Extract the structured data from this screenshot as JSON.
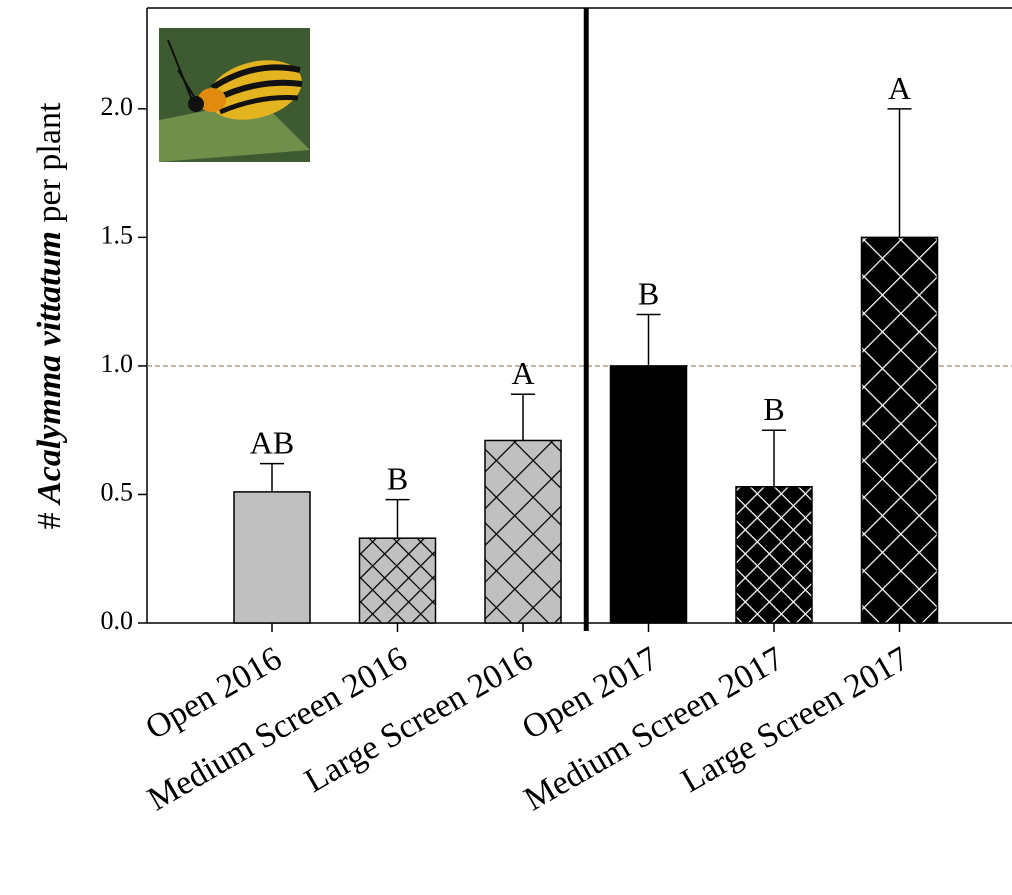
{
  "chart_data": {
    "type": "bar",
    "y_label": {
      "prefix": "#",
      "species": "Acalymma vittatum",
      "suffix": "per plant"
    },
    "categories": [
      "Open 2016",
      "Medium Screen 2016",
      "Large Screen 2016",
      "Open 2017",
      "Medium Screen 2017",
      "Large Screen 2017"
    ],
    "values": [
      0.51,
      0.33,
      0.71,
      1.0,
      0.53,
      1.5
    ],
    "errors": [
      0.11,
      0.15,
      0.18,
      0.2,
      0.22,
      0.5
    ],
    "annotations": [
      "AB",
      "B",
      "A",
      "B",
      "B",
      "A"
    ],
    "colors": [
      "#c0c0c0",
      "#c0c0c0",
      "#c0c0c0",
      "#000000",
      "#000000",
      "#000000"
    ],
    "patterns": [
      "none",
      "dense",
      "sparse",
      "none",
      "dense",
      "sparse"
    ],
    "reference_line": 1.0,
    "reference_color": "#a0785a",
    "ylim": [
      0,
      2.4
    ],
    "yticks": [
      {
        "value": 0,
        "label": "0.0"
      },
      0.5,
      {
        "value": 1,
        "label": "1.0"
      },
      1.5,
      {
        "value": 2,
        "label": "2.0"
      }
    ]
  }
}
